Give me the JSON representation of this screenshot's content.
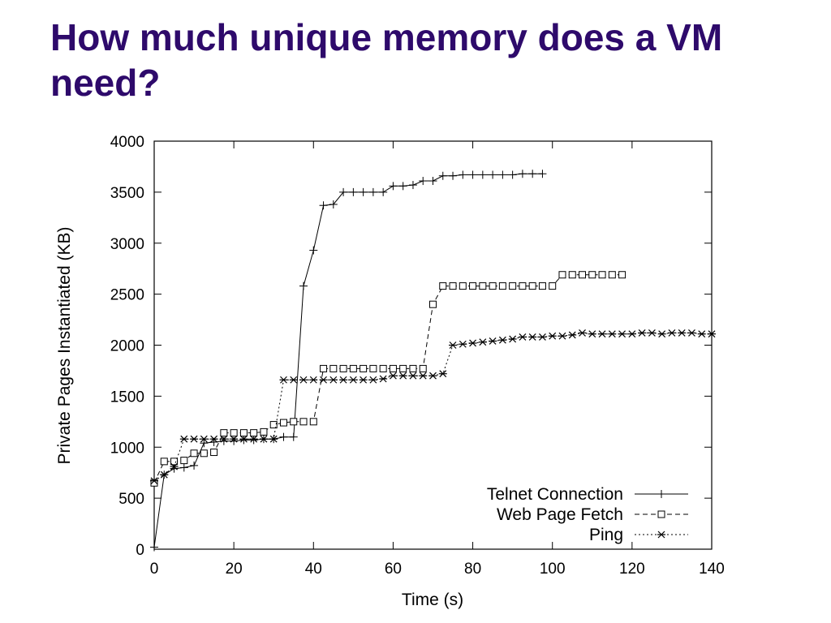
{
  "slide": {
    "title": "How much unique memory does a VM need?"
  },
  "chart_data": {
    "type": "line",
    "title": "",
    "xlabel": "Time (s)",
    "ylabel": "Private Pages Instantiated (KB)",
    "xlim": [
      0,
      140
    ],
    "ylim": [
      0,
      4000
    ],
    "xticks": [
      0,
      20,
      40,
      60,
      80,
      100,
      120,
      140
    ],
    "yticks": [
      0,
      500,
      1000,
      1500,
      2000,
      2500,
      3000,
      3500,
      4000
    ],
    "grid": false,
    "legend_position": "bottom-right",
    "series": [
      {
        "name": "Telnet Connection",
        "marker": "plus",
        "dash": "solid",
        "x": [
          0,
          2.5,
          5,
          7.5,
          10,
          12.5,
          15,
          17.5,
          20,
          22.5,
          25,
          27.5,
          30,
          32.5,
          35,
          37.5,
          40,
          42.5,
          45,
          47.5,
          50,
          52.5,
          55,
          57.5,
          60,
          62.5,
          65,
          67.5,
          70,
          72.5,
          75,
          77.5,
          80,
          82.5,
          85,
          87.5,
          90,
          92.5,
          95,
          97.5
        ],
        "y": [
          20,
          730,
          790,
          800,
          820,
          1040,
          1050,
          1060,
          1060,
          1070,
          1070,
          1080,
          1080,
          1100,
          1100,
          2580,
          2930,
          3370,
          3380,
          3500,
          3500,
          3500,
          3500,
          3500,
          3560,
          3560,
          3570,
          3610,
          3610,
          3660,
          3660,
          3670,
          3670,
          3670,
          3670,
          3670,
          3670,
          3680,
          3680,
          3680
        ]
      },
      {
        "name": "Web Page Fetch",
        "marker": "square",
        "dash": "dashed",
        "x": [
          0,
          2.5,
          5,
          7.5,
          10,
          12.5,
          15,
          17.5,
          20,
          22.5,
          25,
          27.5,
          30,
          32.5,
          35,
          37.5,
          40,
          42.5,
          45,
          47.5,
          50,
          52.5,
          55,
          57.5,
          60,
          62.5,
          65,
          67.5,
          70,
          72.5,
          75,
          77.5,
          80,
          82.5,
          85,
          87.5,
          90,
          92.5,
          95,
          97.5,
          100,
          102.5,
          105,
          107.5,
          110,
          112.5,
          115,
          117.5
        ],
        "y": [
          650,
          860,
          860,
          870,
          940,
          940,
          950,
          1140,
          1140,
          1140,
          1140,
          1150,
          1220,
          1240,
          1250,
          1250,
          1250,
          1770,
          1770,
          1770,
          1770,
          1770,
          1770,
          1770,
          1770,
          1770,
          1770,
          1770,
          2400,
          2580,
          2580,
          2580,
          2580,
          2580,
          2580,
          2580,
          2580,
          2580,
          2580,
          2580,
          2580,
          2690,
          2690,
          2690,
          2690,
          2690,
          2690,
          2690
        ]
      },
      {
        "name": "Ping",
        "marker": "star",
        "dash": "dotted",
        "x": [
          0,
          2.5,
          5,
          7.5,
          10,
          12.5,
          15,
          17.5,
          20,
          22.5,
          25,
          27.5,
          30,
          32.5,
          35,
          37.5,
          40,
          42.5,
          45,
          47.5,
          50,
          52.5,
          55,
          57.5,
          60,
          62.5,
          65,
          67.5,
          70,
          72.5,
          75,
          77.5,
          80,
          82.5,
          85,
          87.5,
          90,
          92.5,
          95,
          97.5,
          100,
          102.5,
          105,
          107.5,
          110,
          112.5,
          115,
          117.5,
          120,
          122.5,
          125,
          127.5,
          130,
          132.5,
          135,
          137.5,
          140
        ],
        "y": [
          670,
          730,
          810,
          1080,
          1080,
          1080,
          1080,
          1080,
          1080,
          1080,
          1080,
          1080,
          1080,
          1660,
          1660,
          1660,
          1660,
          1660,
          1660,
          1660,
          1660,
          1660,
          1660,
          1670,
          1700,
          1700,
          1700,
          1700,
          1700,
          1720,
          2000,
          2010,
          2020,
          2030,
          2040,
          2050,
          2060,
          2080,
          2080,
          2080,
          2090,
          2090,
          2100,
          2120,
          2110,
          2110,
          2110,
          2110,
          2110,
          2120,
          2120,
          2110,
          2120,
          2120,
          2120,
          2110,
          2110
        ]
      }
    ]
  }
}
